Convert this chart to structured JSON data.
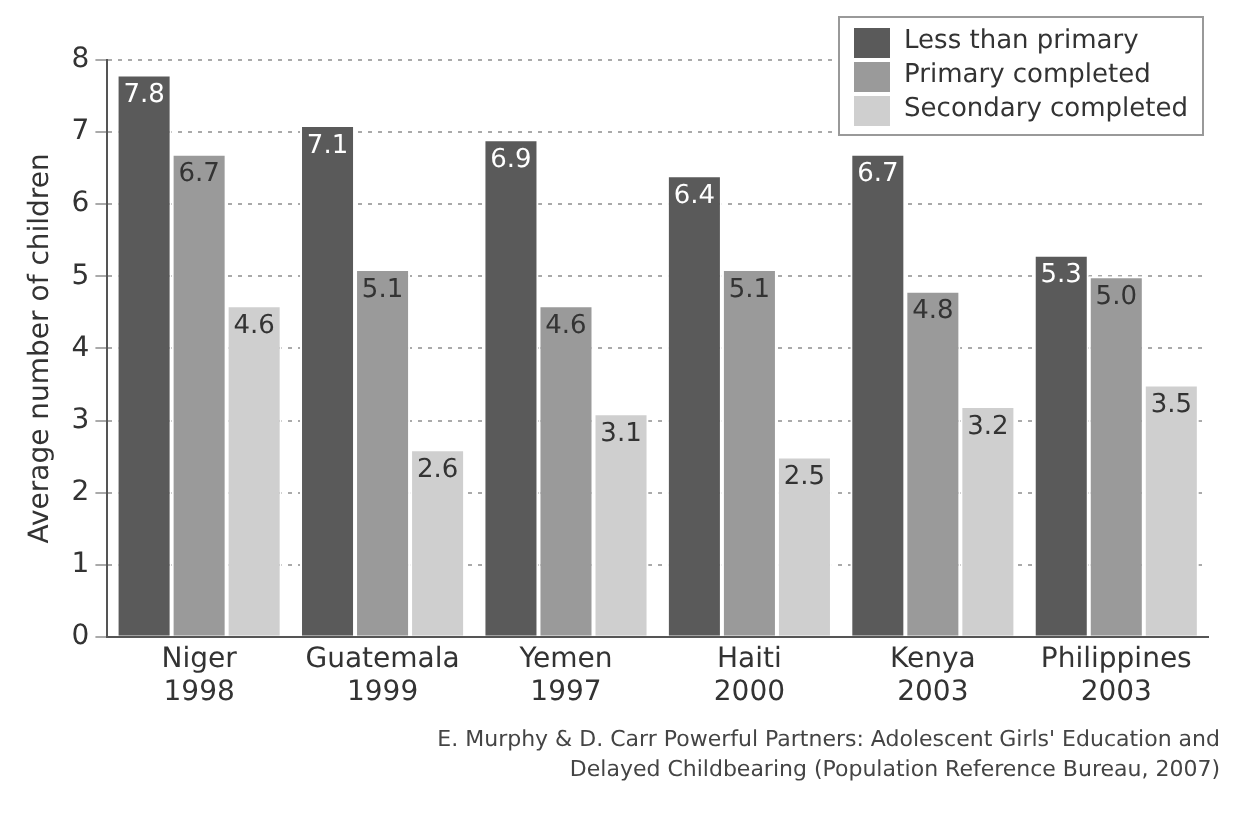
{
  "chart_data": {
    "type": "bar",
    "ylabel": "Average number of children",
    "categories": [
      "Niger 1998",
      "Guatemala 1999",
      "Yemen 1997",
      "Haiti 2000",
      "Kenya 2003",
      "Philippines 2003"
    ],
    "series": [
      {
        "name": "Less than primary",
        "color": "#5a5a5a",
        "values": [
          7.8,
          7.1,
          6.9,
          6.4,
          6.7,
          5.3
        ],
        "value_labels": [
          "7.8",
          "7.1",
          "6.9",
          "6.4",
          "6.7",
          "5.3"
        ]
      },
      {
        "name": "Primary completed",
        "color": "#9a9a9a",
        "values": [
          6.7,
          5.1,
          4.6,
          5.1,
          4.8,
          5.0
        ],
        "value_labels": [
          "6.7",
          "5.1",
          "4.6",
          "5.1",
          "4.8",
          "5.0"
        ]
      },
      {
        "name": "Secondary completed",
        "color": "#cfcfcf",
        "values": [
          4.6,
          2.6,
          3.1,
          2.5,
          3.2,
          3.5
        ],
        "value_labels": [
          "4.6",
          "2.6",
          "3.1",
          "2.5",
          "3.2",
          "3.5"
        ]
      }
    ],
    "ylim": [
      0,
      8
    ],
    "yticks": [
      0,
      1,
      2,
      3,
      4,
      5,
      6,
      7,
      8
    ],
    "grid": "y",
    "legend": "top right",
    "annotations": [
      "E. Murphy & D. Carr Powerful Partners: Adolescent Girls' Education and Delayed Childbearing (Population Reference Bureau, 2007)"
    ]
  }
}
